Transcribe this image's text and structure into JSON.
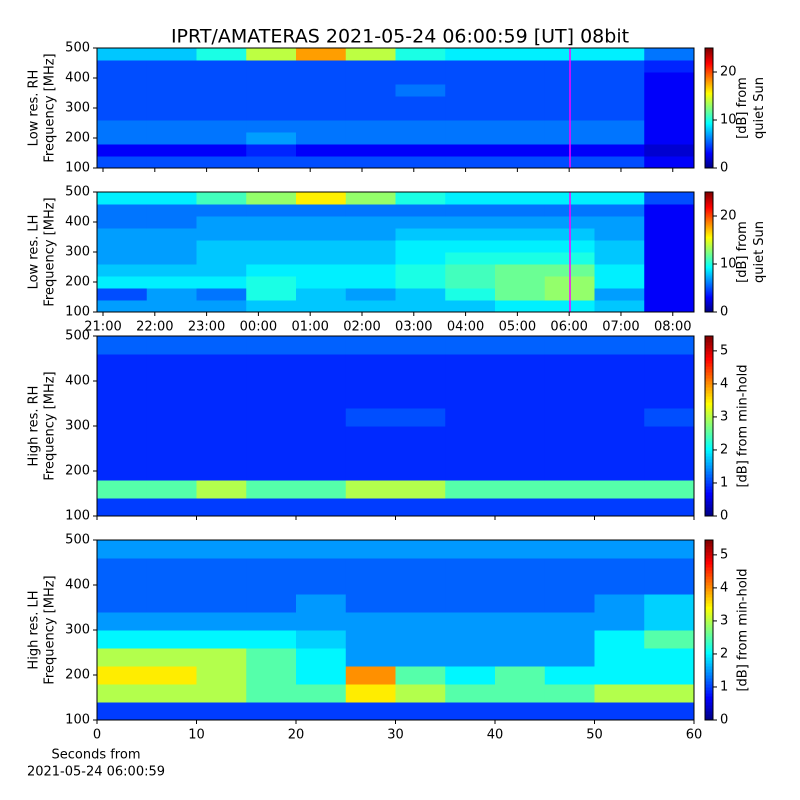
{
  "title": "IPRT/AMATERAS 2021-05-24 06:00:59 [UT]   08bit",
  "chart_data": [
    {
      "type": "heatmap",
      "ylabel": [
        "Low res. RH",
        "Frequency [MHz]"
      ],
      "clabel": [
        "[dB] from",
        "quiet Sun"
      ],
      "xlim": [
        20.884,
        32.41
      ],
      "xticks": [
        21,
        22,
        23,
        24,
        25,
        26,
        27,
        28,
        29,
        30,
        31,
        32
      ],
      "show_xticklabels": false,
      "ylim": [
        100,
        500
      ],
      "yticks": [
        100,
        200,
        300,
        400,
        500
      ],
      "clim": [
        0,
        25
      ],
      "cticks": [
        0,
        10,
        20
      ],
      "vline": 30.016,
      "vline_color": "#ff00ff",
      "z": [
        [
          5,
          5,
          5,
          5,
          5,
          5,
          5,
          5,
          5,
          5,
          5,
          3
        ],
        [
          3,
          3,
          3,
          4,
          3,
          3,
          3,
          3,
          3,
          3,
          3,
          2
        ],
        [
          6,
          6,
          6,
          7,
          6,
          6,
          6,
          6,
          6,
          6,
          6,
          3
        ],
        [
          6,
          6,
          6,
          6,
          6,
          6,
          6,
          6,
          6,
          6,
          6,
          3
        ],
        [
          5,
          5,
          5,
          5,
          5,
          5,
          5,
          5,
          5,
          5,
          5,
          3
        ],
        [
          5,
          5,
          5,
          5,
          5,
          5,
          5,
          5,
          5,
          5,
          5,
          3
        ],
        [
          5,
          5,
          5,
          5,
          5,
          5,
          6,
          5,
          5,
          5,
          5,
          3
        ],
        [
          5,
          5,
          5,
          5,
          5,
          5,
          5,
          5,
          5,
          5,
          5,
          3
        ],
        [
          5,
          5,
          5,
          5,
          5,
          5,
          5,
          5,
          5,
          5,
          5,
          4
        ],
        [
          8,
          8,
          10,
          14,
          18,
          14,
          10,
          9,
          9,
          9,
          9,
          6
        ]
      ]
    },
    {
      "type": "heatmap",
      "ylabel": [
        "Low res. LH",
        "Frequency [MHz]"
      ],
      "clabel": [
        "[dB] from",
        "quiet Sun"
      ],
      "xlim": [
        20.884,
        32.41
      ],
      "xticks": [
        {
          "value": 21,
          "label": "21:00"
        },
        {
          "value": 22,
          "label": "22:00"
        },
        {
          "value": 23,
          "label": "23:00"
        },
        {
          "value": 24,
          "label": "00:00"
        },
        {
          "value": 25,
          "label": "01:00"
        },
        {
          "value": 26,
          "label": "02:00"
        },
        {
          "value": 27,
          "label": "03:00"
        },
        {
          "value": 28,
          "label": "04:00"
        },
        {
          "value": 29,
          "label": "05:00"
        },
        {
          "value": 30,
          "label": "06:00"
        },
        {
          "value": 31,
          "label": "07:00"
        },
        {
          "value": 32,
          "label": "08:00"
        }
      ],
      "show_xticklabels": true,
      "ylim": [
        100,
        500
      ],
      "yticks": [
        100,
        200,
        300,
        400,
        500
      ],
      "clim": [
        0,
        25
      ],
      "cticks": [
        0,
        10,
        20
      ],
      "vline": 30.016,
      "vline_color": "#ff00ff",
      "z": [
        [
          7,
          7,
          7,
          8,
          8,
          8,
          8,
          8,
          9,
          9,
          8,
          3
        ],
        [
          5,
          7,
          6,
          10,
          8,
          7,
          8,
          10,
          12,
          13,
          7,
          3
        ],
        [
          9,
          9,
          9,
          10,
          9,
          9,
          10,
          11,
          12,
          13,
          9,
          3
        ],
        [
          8,
          8,
          8,
          9,
          9,
          9,
          10,
          11,
          12,
          12,
          9,
          3
        ],
        [
          7,
          7,
          8,
          8,
          8,
          8,
          9,
          10,
          10,
          10,
          8,
          3
        ],
        [
          7,
          7,
          8,
          8,
          8,
          8,
          9,
          9,
          9,
          9,
          8,
          3
        ],
        [
          7,
          7,
          7,
          7,
          7,
          7,
          8,
          8,
          8,
          8,
          7,
          3
        ],
        [
          6,
          6,
          7,
          7,
          7,
          7,
          7,
          7,
          7,
          7,
          7,
          3
        ],
        [
          6,
          6,
          6,
          6,
          6,
          6,
          6,
          6,
          6,
          6,
          6,
          3
        ],
        [
          9,
          9,
          11,
          13,
          16,
          13,
          10,
          9,
          9,
          9,
          9,
          5
        ]
      ]
    },
    {
      "type": "heatmap",
      "ylabel": [
        "High res. RH",
        "Frequency [MHz]"
      ],
      "clabel": [
        "[dB] from min-hold"
      ],
      "xlim": [
        0,
        60
      ],
      "xticks": [
        0,
        10,
        20,
        30,
        40,
        50,
        60
      ],
      "show_xticklabels": false,
      "ylim": [
        100,
        500
      ],
      "yticks": [
        100,
        200,
        300,
        400,
        500
      ],
      "clim": [
        0,
        5.45
      ],
      "cticks": [
        0,
        1,
        2,
        3,
        4,
        5
      ],
      "z": [
        [
          1,
          1,
          1,
          1,
          1,
          1,
          1,
          1,
          1,
          1,
          1,
          1
        ],
        [
          2.5,
          2.5,
          3,
          2.5,
          2.5,
          3,
          3,
          2.5,
          2.5,
          2.5,
          2.5,
          2.5
        ],
        [
          0.9,
          0.9,
          0.9,
          0.9,
          0.9,
          0.9,
          0.9,
          0.9,
          0.9,
          0.9,
          0.9,
          0.9
        ],
        [
          0.9,
          0.9,
          0.9,
          0.9,
          0.9,
          0.9,
          0.9,
          0.9,
          0.9,
          0.9,
          0.9,
          0.9
        ],
        [
          0.9,
          0.9,
          0.9,
          0.9,
          0.9,
          0.9,
          0.9,
          0.9,
          0.9,
          0.9,
          0.9,
          0.9
        ],
        [
          0.9,
          0.9,
          0.9,
          0.9,
          0.9,
          1.1,
          1.1,
          0.9,
          0.9,
          0.9,
          0.9,
          1.1
        ],
        [
          0.9,
          0.9,
          0.9,
          0.9,
          0.9,
          0.9,
          0.9,
          0.9,
          0.9,
          0.9,
          0.9,
          0.9
        ],
        [
          0.9,
          0.9,
          0.9,
          0.9,
          0.9,
          0.9,
          0.9,
          0.9,
          0.9,
          0.9,
          0.9,
          0.9
        ],
        [
          0.9,
          0.9,
          0.9,
          0.9,
          0.9,
          0.9,
          0.9,
          0.9,
          0.9,
          0.9,
          0.9,
          0.9
        ],
        [
          1.2,
          1.2,
          1.2,
          1.2,
          1.2,
          1.2,
          1.2,
          1.2,
          1.2,
          1.2,
          1.2,
          1.2
        ]
      ]
    },
    {
      "type": "heatmap",
      "ylabel": [
        "High res. LH",
        "Frequency [MHz]"
      ],
      "clabel": [
        "[dB] from min-hold"
      ],
      "xlim": [
        0,
        60
      ],
      "xticks": [
        0,
        10,
        20,
        30,
        40,
        50,
        60
      ],
      "show_xticklabels": true,
      "xlabel": [
        "Seconds from",
        "2021-05-24 06:00:59"
      ],
      "ylim": [
        100,
        500
      ],
      "yticks": [
        100,
        200,
        300,
        400,
        500
      ],
      "clim": [
        0,
        5.45
      ],
      "cticks": [
        0,
        1,
        2,
        3,
        4,
        5
      ],
      "z": [
        [
          1,
          1,
          1,
          1,
          1,
          1,
          1,
          1,
          1,
          1,
          1,
          1
        ],
        [
          3,
          3,
          3,
          2.5,
          2.5,
          3.5,
          3,
          2.5,
          2.5,
          2.5,
          3,
          3
        ],
        [
          3.5,
          3.5,
          3,
          2.5,
          2,
          4,
          2.5,
          2,
          2.5,
          2,
          2,
          2
        ],
        [
          3,
          3,
          3,
          2.5,
          2,
          1.5,
          1.5,
          1.5,
          1.5,
          1.5,
          2,
          2
        ],
        [
          2,
          2,
          2,
          2,
          1.8,
          1.5,
          1.5,
          1.5,
          1.5,
          1.5,
          2,
          2.5
        ],
        [
          1.5,
          1.5,
          1.5,
          1.5,
          1.5,
          1.5,
          1.5,
          1.5,
          1.5,
          1.5,
          1.5,
          1.8
        ],
        [
          1.2,
          1.2,
          1.2,
          1.2,
          1.5,
          1.2,
          1.2,
          1.2,
          1.2,
          1.2,
          1.5,
          1.8
        ],
        [
          1.2,
          1.2,
          1.2,
          1.2,
          1.2,
          1.2,
          1.2,
          1.2,
          1.2,
          1.2,
          1.2,
          1.2
        ],
        [
          1.2,
          1.2,
          1.2,
          1.2,
          1.2,
          1.2,
          1.2,
          1.2,
          1.2,
          1.2,
          1.2,
          1.2
        ],
        [
          1.5,
          1.5,
          1.5,
          1.5,
          1.5,
          1.5,
          1.5,
          1.5,
          1.5,
          1.5,
          1.5,
          1.5
        ]
      ]
    }
  ]
}
